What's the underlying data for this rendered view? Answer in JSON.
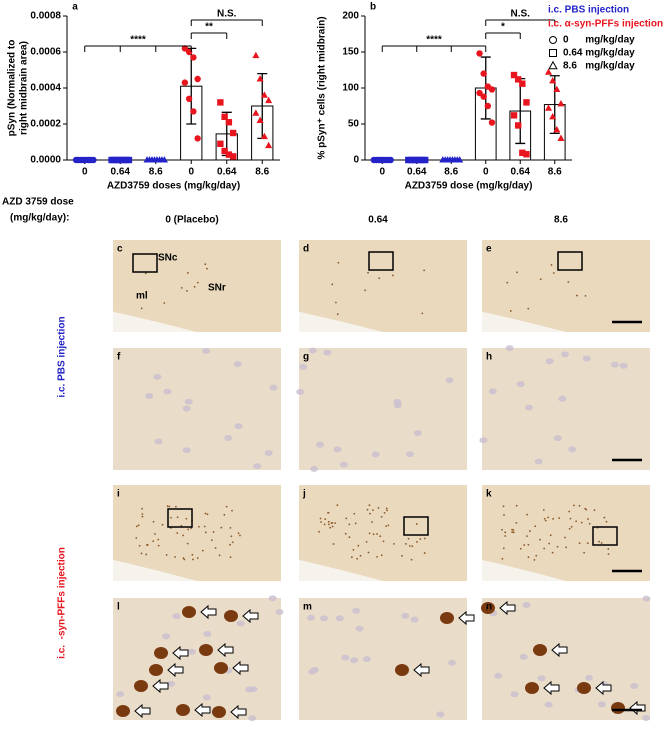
{
  "chart_data": [
    {
      "type": "bar",
      "panel": "a",
      "y_label": [
        "pSyn (Normalized to",
        "right midbrain area)"
      ],
      "x_label": "AZD3759 doses (mg/kg/day)",
      "categories": [
        "0",
        "0.64",
        "8.6",
        "0",
        "0.64",
        "8.6"
      ],
      "values": [
        0,
        0,
        0,
        0.00041,
        0.000145,
        0.0003
      ],
      "errors": [
        0,
        0,
        0,
        0.00021,
        0.00012,
        0.00018
      ],
      "colors": [
        "#2323c8",
        "#2323c8",
        "#2323c8",
        "#e8141e",
        "#e8141e",
        "#e8141e"
      ],
      "markers": [
        "circle",
        "square",
        "triangle",
        "circle",
        "square",
        "triangle"
      ],
      "points": [
        [
          0,
          0,
          0,
          0,
          0,
          0,
          0,
          0
        ],
        [
          0,
          0,
          0,
          0,
          0,
          0,
          0,
          0
        ],
        [
          0,
          0,
          0,
          0,
          0,
          0,
          0,
          0
        ],
        [
          0.00062,
          0.0006,
          0.00057,
          0.00045,
          0.00043,
          0.00034,
          0.00027,
          0.00012
        ],
        [
          0.00032,
          0.00024,
          0.00021,
          0.00015,
          9e-05,
          5e-05,
          3e-05,
          2e-05
        ],
        [
          0.00058,
          0.00045,
          0.00036,
          0.00033,
          0.00026,
          0.00022,
          0.00013,
          8e-05
        ]
      ],
      "ylim": [
        0,
        0.0008
      ],
      "yticks": [
        {
          "value": 0,
          "label": "0.0000"
        },
        {
          "value": 0.0002,
          "label": "0.0002"
        },
        {
          "value": 0.0004,
          "label": "0.0004"
        },
        {
          "value": 0.0006,
          "label": "0.0006"
        },
        {
          "value": 0.0008,
          "label": "0.0008"
        }
      ],
      "significance": [
        {
          "label": "****",
          "from": 0,
          "to": 3
        },
        {
          "label": "**",
          "from": 3,
          "to": 4
        },
        {
          "label": "N.S.",
          "from": 3,
          "to": 5
        }
      ]
    },
    {
      "type": "bar",
      "panel": "b",
      "y_label": [
        "% pSyn⁺ cells (right midbrain)"
      ],
      "x_label": "AZD3759 dose (mg/kg/day)",
      "categories": [
        "0",
        "0.64",
        "8.6",
        "0",
        "0.64",
        "8.6"
      ],
      "values": [
        0,
        0,
        0,
        100,
        68,
        77
      ],
      "errors": [
        0,
        0,
        0,
        43,
        45,
        40
      ],
      "colors": [
        "#2323c8",
        "#2323c8",
        "#2323c8",
        "#e8141e",
        "#e8141e",
        "#e8141e"
      ],
      "markers": [
        "circle",
        "square",
        "triangle",
        "circle",
        "square",
        "triangle"
      ],
      "points": [
        [
          0,
          0,
          0,
          0,
          0,
          0,
          0,
          0
        ],
        [
          0,
          0,
          0,
          0,
          0,
          0,
          0,
          0
        ],
        [
          0,
          0,
          0,
          0,
          0,
          0,
          0,
          0
        ],
        [
          148,
          120,
          102,
          98,
          93,
          88,
          75,
          52
        ],
        [
          118,
          112,
          106,
          80,
          62,
          48,
          10,
          8
        ],
        [
          122,
          110,
          98,
          78,
          72,
          60,
          42,
          30
        ]
      ],
      "ylim": [
        0,
        200
      ],
      "yticks": [
        0,
        50,
        100,
        150,
        200
      ],
      "significance": [
        {
          "label": "****",
          "from": 0,
          "to": 3
        },
        {
          "label": "*",
          "from": 3,
          "to": 4
        },
        {
          "label": "N.S.",
          "from": 3,
          "to": 5
        }
      ]
    }
  ],
  "legend": {
    "groups": [
      {
        "label": "i.c. PBS injection",
        "color": "#2323c8"
      },
      {
        "label": "i.c. α-syn-PFFs injection",
        "color": "#e8141e"
      }
    ],
    "doses": [
      {
        "label": "0      mg/kg/day",
        "marker": "circle"
      },
      {
        "label": "0.64 mg/kg/day",
        "marker": "square"
      },
      {
        "label": "8.6   mg/kg/day",
        "marker": "triangle"
      }
    ]
  },
  "images": {
    "dose_header": [
      "AZD 3759 dose",
      "(mg/kg/day):"
    ],
    "columns": [
      "0 (Placebo)",
      "0.64",
      "8.6"
    ],
    "row_labels": [
      {
        "label": "i.c. PBS injection",
        "color": "#2323c8"
      },
      {
        "label": "i.c.  -syn-PFFs injection",
        "color": "#e8141e"
      }
    ],
    "panels": [
      [
        "c",
        "d",
        "e"
      ],
      [
        "f",
        "g",
        "h"
      ],
      [
        "i",
        "j",
        "k"
      ],
      [
        "l",
        "m",
        "n"
      ]
    ],
    "region_labels": [
      "SNc",
      "SNr",
      "ml"
    ]
  }
}
